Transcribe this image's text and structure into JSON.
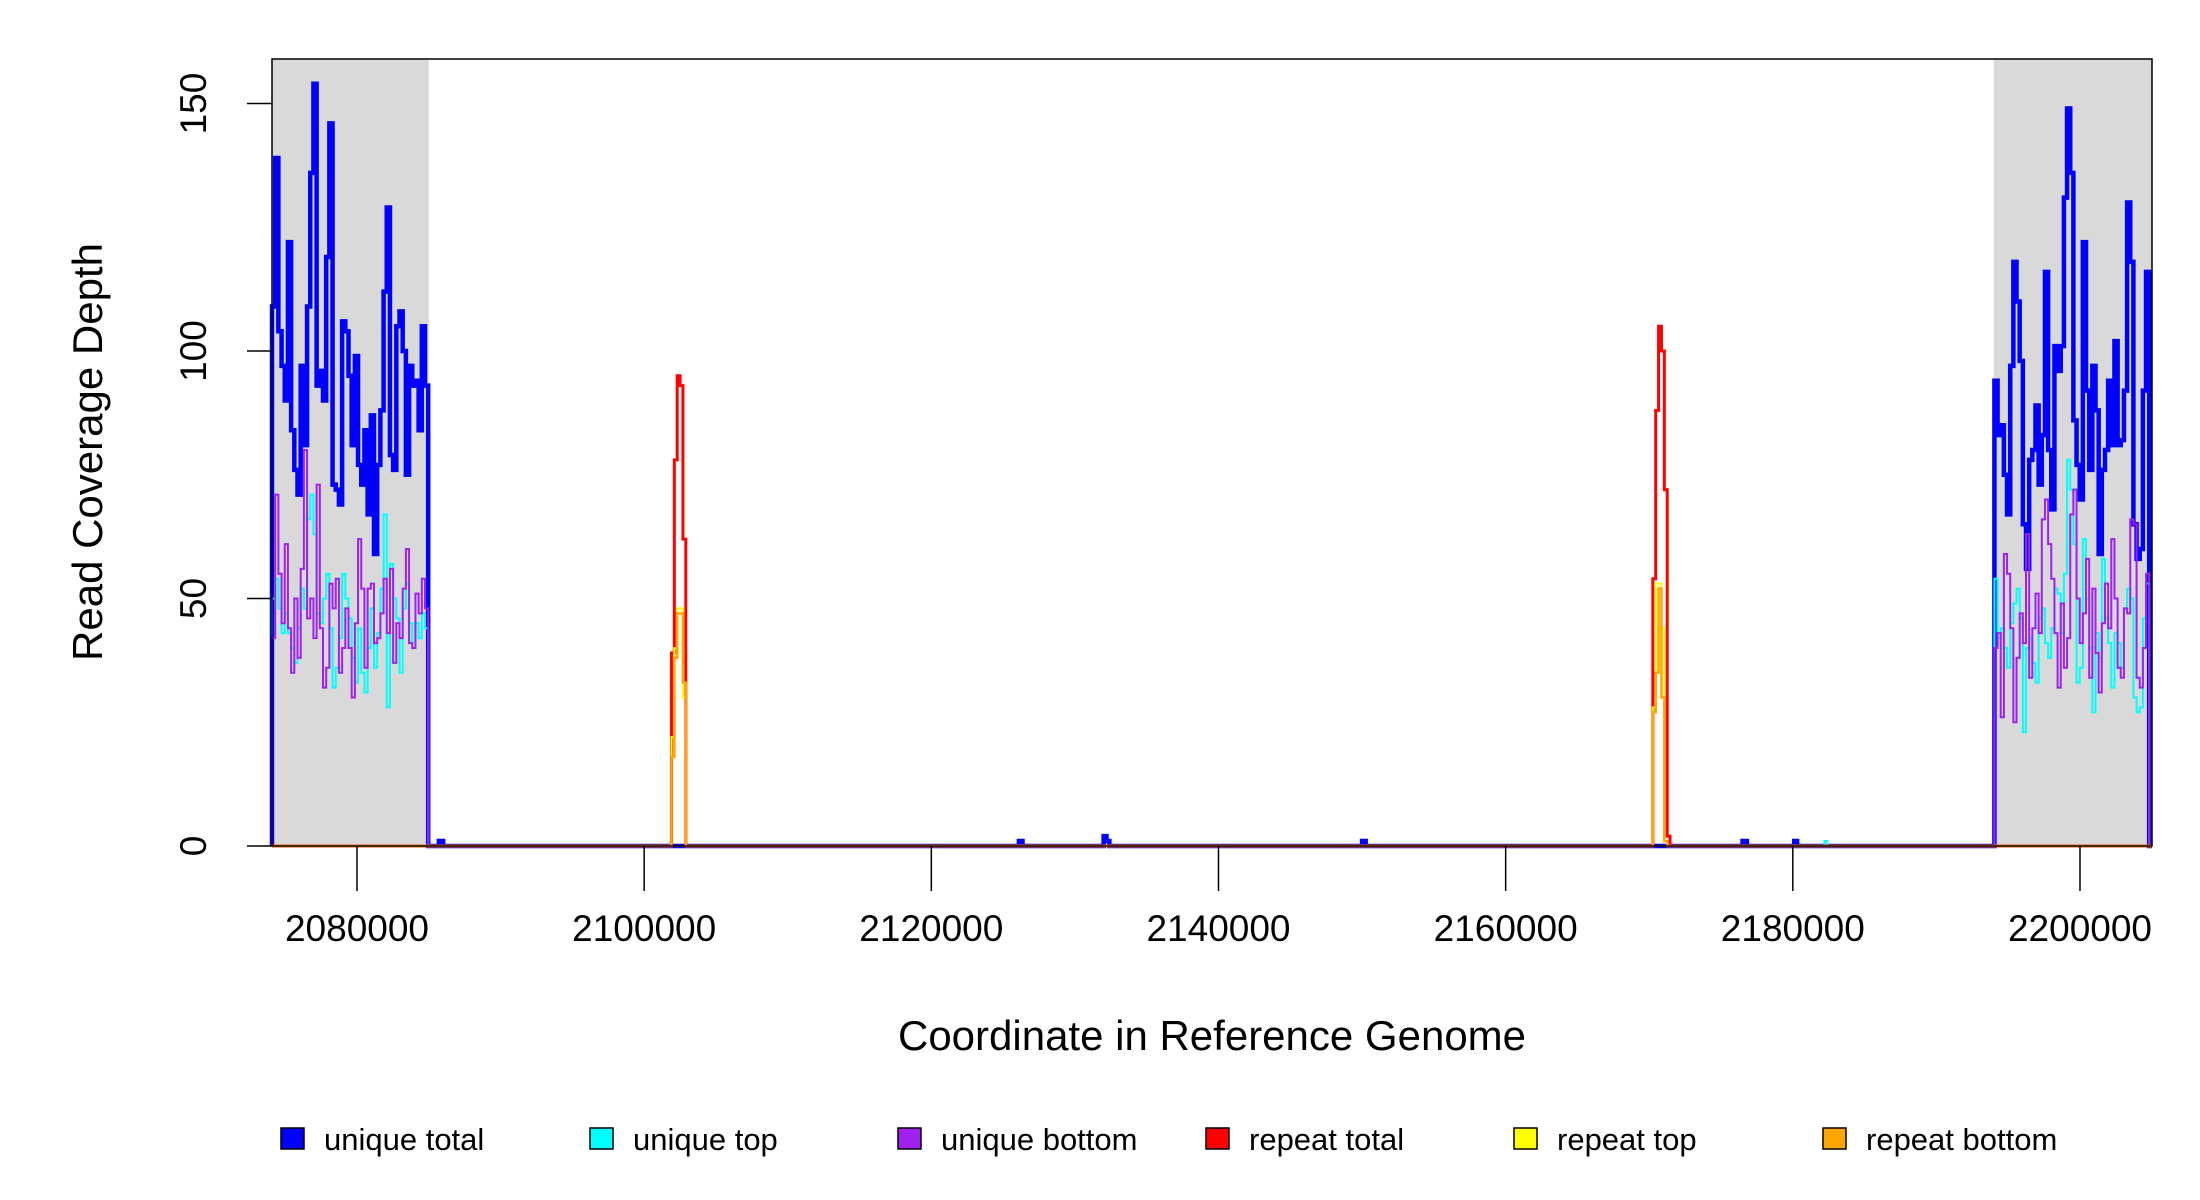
{
  "chart_data": {
    "type": "line",
    "step": true,
    "title": "",
    "xlabel": "Coordinate in Reference Genome",
    "ylabel": "Read Coverage Depth",
    "xlim": [
      2074080,
      2205015
    ],
    "ylim": [
      0,
      159
    ],
    "x_ticks": [
      2080000,
      2100000,
      2120000,
      2140000,
      2160000,
      2180000,
      2200000
    ],
    "x_tick_labels": [
      "2080000",
      "2100000",
      "2120000",
      "2140000",
      "2160000",
      "2180000",
      "2200000"
    ],
    "y_ticks": [
      0,
      50,
      100,
      150
    ],
    "y_tick_labels": [
      "0",
      "50",
      "100",
      "150"
    ],
    "shaded_regions": [
      [
        2074080,
        2085000
      ],
      [
        2194000,
        2205015
      ]
    ],
    "shade_color": "#d9d9d9",
    "legend_position": "bottom",
    "series": [
      {
        "name": "unique total",
        "color": "#0000ff",
        "segments": [
          {
            "start": 2074080,
            "bin": 222,
            "values": [
              109,
              139,
              104,
              97,
              90,
              122,
              84,
              76,
              71,
              97,
              81,
              109,
              136,
              154,
              93,
              96,
              90,
              119,
              146,
              73,
              72,
              69,
              106,
              104,
              95,
              81,
              99,
              77,
              73,
              84,
              67,
              87,
              59,
              77,
              88,
              112,
              129,
              79,
              76,
              105,
              108,
              100,
              75,
              97,
              93,
              94,
              84,
              105,
              93
            ]
          },
          {
            "start": 2085700,
            "bin": 300,
            "values": [
              1
            ]
          },
          {
            "start": 2126100,
            "bin": 250,
            "values": [
              1
            ]
          },
          {
            "start": 2132000,
            "bin": 200,
            "values": [
              2,
              1
            ]
          },
          {
            "start": 2150000,
            "bin": 250,
            "values": [
              1
            ]
          },
          {
            "start": 2176500,
            "bin": 300,
            "values": [
              1
            ]
          },
          {
            "start": 2180100,
            "bin": 200,
            "values": [
              1
            ]
          },
          {
            "start": 2194040,
            "bin": 220,
            "values": [
              94,
              83,
              85,
              75,
              67,
              97,
              118,
              110,
              98,
              65,
              56,
              78,
              80,
              89,
              73,
              83,
              116,
              80,
              68,
              101,
              96,
              101,
              131,
              149,
              136,
              86,
              77,
              70,
              122,
              92,
              76,
              97,
              88,
              59,
              76,
              80,
              94,
              81,
              102,
              81,
              82,
              92,
              130,
              118,
              65,
              58,
              60,
              92,
              116
            ]
          }
        ]
      },
      {
        "name": "unique top",
        "color": "#00ffff",
        "segments": [
          {
            "start": 2074080,
            "bin": 222,
            "values": [
              50,
              54,
              48,
              43,
              47,
              43,
              40,
              37,
              44,
              52,
              48,
              66,
              71,
              63,
              47,
              45,
              50,
              55,
              44,
              32,
              36,
              42,
              55,
              50,
              46,
              38,
              33,
              44,
              35,
              31,
              40,
              48,
              36,
              43,
              52,
              67,
              28,
              57,
              50,
              46,
              35,
              48,
              53,
              45,
              40,
              45,
              42,
              47,
              44
            ]
          },
          {
            "start": 2182200,
            "bin": 200,
            "values": [
              1
            ]
          },
          {
            "start": 2194040,
            "bin": 220,
            "values": [
              54,
              42,
              44,
              40,
              36,
              45,
              49,
              52,
              46,
              23,
              40,
              42,
              37,
              33,
              46,
              48,
              41,
              38,
              44,
              52,
              51,
              43,
              55,
              78,
              72,
              61,
              33,
              36,
              62,
              50,
              40,
              27,
              43,
              38,
              58,
              46,
              41,
              32,
              43,
              41,
              36,
              48,
              52,
              50,
              30,
              27,
              28,
              46,
              53
            ]
          }
        ]
      },
      {
        "name": "unique bottom",
        "color": "#a020f0",
        "segments": [
          {
            "start": 2074080,
            "bin": 222,
            "values": [
              42,
              71,
              55,
              45,
              61,
              44,
              35,
              50,
              38,
              56,
              80,
              46,
              50,
              42,
              73,
              44,
              32,
              36,
              53,
              48,
              54,
              35,
              40,
              48,
              40,
              30,
              45,
              62,
              52,
              36,
              52,
              53,
              41,
              42,
              47,
              54,
              43,
              56,
              37,
              45,
              42,
              52,
              60,
              41,
              40,
              51,
              47,
              54,
              48
            ]
          },
          {
            "start": 2194040,
            "bin": 220,
            "values": [
              40,
              43,
              26,
              59,
              55,
              44,
              25,
              38,
              47,
              41,
              63,
              34,
              44,
              51,
              43,
              66,
              70,
              61,
              54,
              43,
              32,
              49,
              36,
              42,
              67,
              72,
              50,
              41,
              47,
              58,
              34,
              52,
              39,
              31,
              45,
              53,
              44,
              62,
              50,
              36,
              34,
              48,
              47,
              66,
              65,
              34,
              32,
              40,
              55
            ]
          }
        ]
      },
      {
        "name": "repeat total",
        "color": "#ff0000",
        "segments": [
          {
            "start": 2101900,
            "bin": 200,
            "values": [
              39,
              78,
              95,
              93,
              62
            ]
          },
          {
            "start": 2170250,
            "bin": 200,
            "values": [
              54,
              88,
              105,
              100,
              72,
              2
            ]
          }
        ]
      },
      {
        "name": "repeat top",
        "color": "#ffff00",
        "segments": [
          {
            "start": 2101900,
            "bin": 200,
            "values": [
              22,
              40,
              48,
              48,
              30
            ]
          },
          {
            "start": 2170250,
            "bin": 200,
            "values": [
              28,
              53,
              53,
              44,
              1
            ]
          }
        ]
      },
      {
        "name": "repeat bottom",
        "color": "#ffa500",
        "segments": [
          {
            "start": 2101900,
            "bin": 200,
            "values": [
              18,
              38,
              47,
              47,
              33
            ]
          },
          {
            "start": 2170250,
            "bin": 200,
            "values": [
              27,
              35,
              52,
              30,
              1
            ]
          }
        ]
      }
    ]
  }
}
